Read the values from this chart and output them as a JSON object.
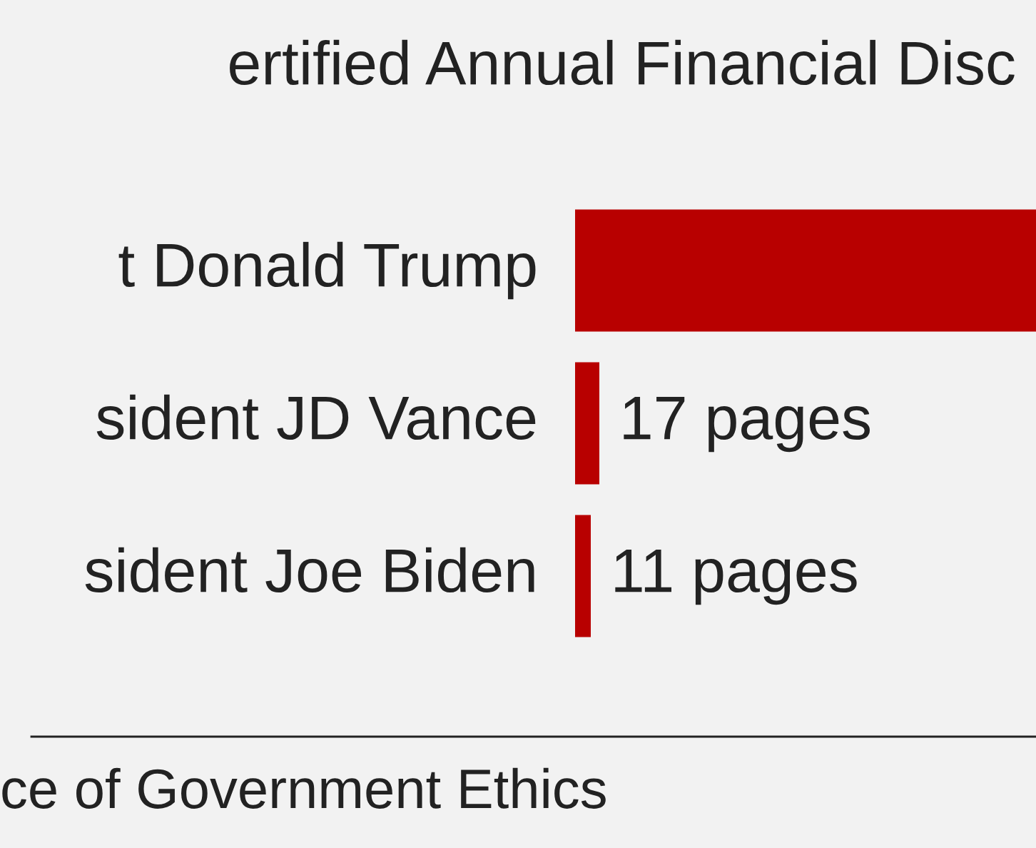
{
  "chart_data": {
    "type": "bar",
    "orientation": "horizontal",
    "title": "ertified Annual Financial Disc",
    "categories": [
      "t Donald Trump",
      "sident JD Vance",
      "sident Joe Biden"
    ],
    "values": [
      323,
      17,
      11
    ],
    "value_labels": [
      null,
      "17 pages",
      "11 pages"
    ],
    "color": "#b80000",
    "xlim": [
      0,
      323
    ],
    "tick_labels": false,
    "grid": false,
    "legend": false,
    "annotations": [
      "ce of Government Ethics"
    ]
  }
}
